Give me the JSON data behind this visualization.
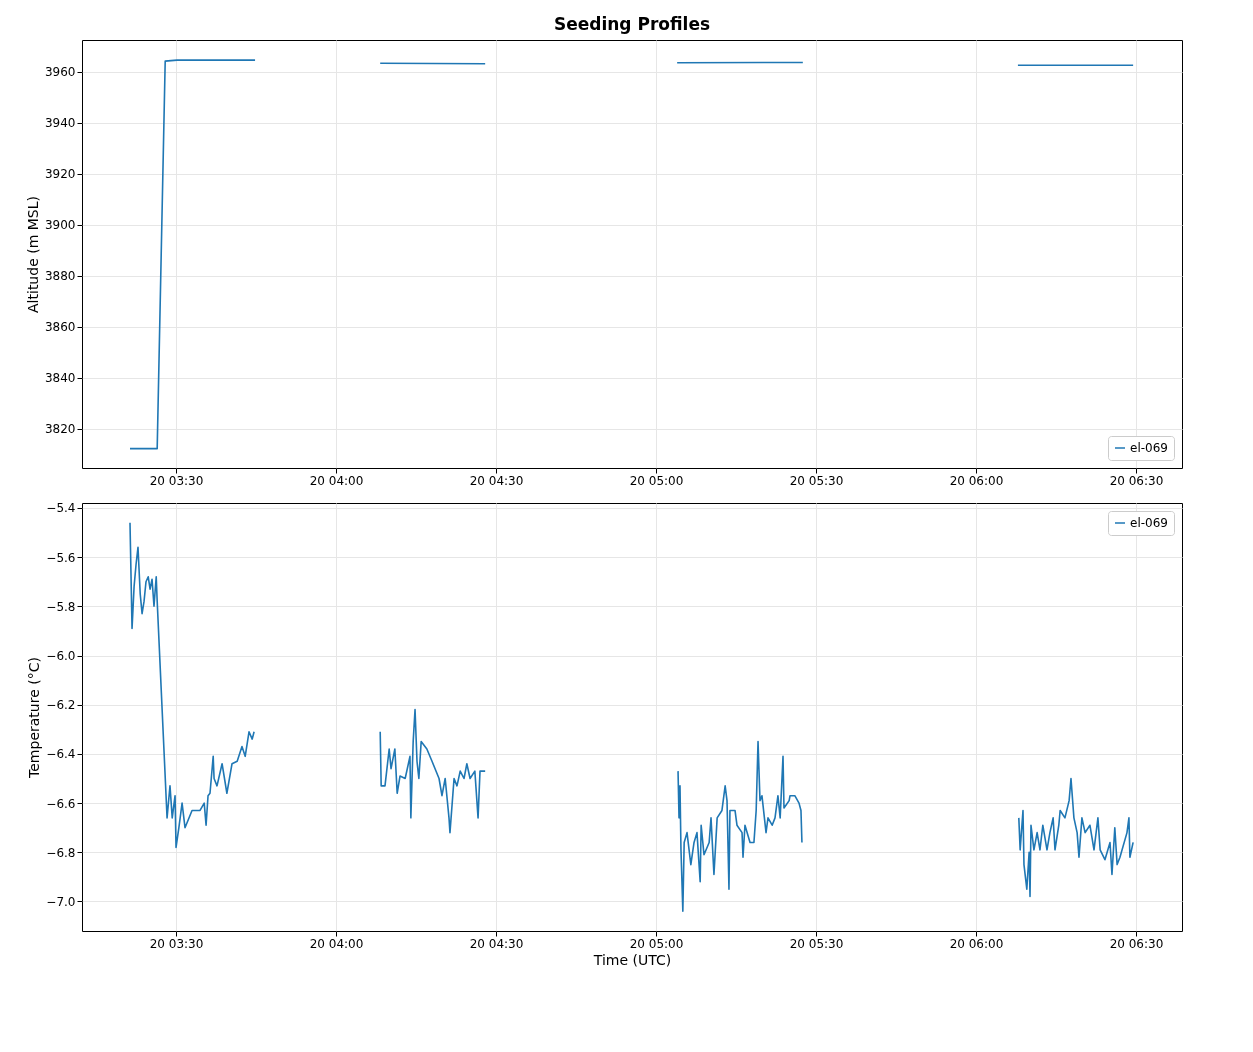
{
  "chart_data": [
    {
      "type": "line",
      "title": "Seeding Profiles",
      "ylabel": "Altitude (m MSL)",
      "xlim": [
        "--01-20T03:12:22",
        "--01-20T06:38:38"
      ],
      "ylim": [
        3804.7,
        3972.5
      ],
      "xticks": [
        {
          "value": "--01-20T03:30",
          "label": "20 03:30"
        },
        {
          "value": "--01-20T04:00",
          "label": "20 04:00"
        },
        {
          "value": "--01-20T04:30",
          "label": "20 04:30"
        },
        {
          "value": "--01-20T05:00",
          "label": "20 05:00"
        },
        {
          "value": "--01-20T05:30",
          "label": "20 05:30"
        },
        {
          "value": "--01-20T06:00",
          "label": "20 06:00"
        },
        {
          "value": "--01-20T06:30",
          "label": "20 06:30"
        }
      ],
      "yticks": [
        3820,
        3840,
        3860,
        3880,
        3900,
        3920,
        3940,
        3960
      ],
      "grid": true,
      "legend": "bottom right",
      "line_style": "solid",
      "series": [
        {
          "name": "el-069",
          "color": "#1f77b4",
          "x": [
            "--01-20T03:21:22",
            "--01-20T03:26:28",
            "--01-20T03:27:58",
            "--01-20T03:30:11",
            "--01-20T03:44:49",
            "--01-20T03:54:00",
            "--01-20T04:08:17",
            "--01-20T04:27:58",
            "--01-20T04:48:00",
            "--01-20T05:03:58",
            "--01-20T05:27:32",
            "--01-20T05:48:00",
            "--01-20T06:07:52",
            "--01-20T06:29:28"
          ],
          "values": [
            3812.3,
            3812.3,
            3964.2,
            3964.6,
            3964.6,
            null,
            3963.4,
            3963.2,
            null,
            3963.6,
            3963.7,
            null,
            3962.6,
            3962.6
          ]
        }
      ]
    },
    {
      "type": "line",
      "xlabel": "Time (UTC)",
      "ylabel": "Temperature (°C)",
      "xlim": [
        "--01-20T03:12:22",
        "--01-20T06:38:38"
      ],
      "ylim": [
        -7.12,
        -5.38
      ],
      "xticks": [
        {
          "value": "--01-20T03:30",
          "label": "20 03:30"
        },
        {
          "value": "--01-20T04:00",
          "label": "20 04:00"
        },
        {
          "value": "--01-20T04:30",
          "label": "20 04:30"
        },
        {
          "value": "--01-20T05:00",
          "label": "20 05:00"
        },
        {
          "value": "--01-20T05:30",
          "label": "20 05:30"
        },
        {
          "value": "--01-20T06:00",
          "label": "20 06:00"
        },
        {
          "value": "--01-20T06:30",
          "label": "20 06:30"
        }
      ],
      "yticks": [
        {
          "value": -7.0,
          "label": "−7.0"
        },
        {
          "value": -6.8,
          "label": "−6.8"
        },
        {
          "value": -6.6,
          "label": "−6.6"
        },
        {
          "value": -6.4,
          "label": "−6.4"
        },
        {
          "value": -6.2,
          "label": "−6.2"
        },
        {
          "value": -6.0,
          "label": "−6.0"
        },
        {
          "value": -5.8,
          "label": "−5.8"
        },
        {
          "value": -5.6,
          "label": "−5.6"
        },
        {
          "value": -5.4,
          "label": "−5.4"
        }
      ],
      "grid": true,
      "legend": "top right",
      "line_style": "solid",
      "series": [
        {
          "name": "el-069",
          "color": "#1f77b4",
          "x": [
            "--01-20T03:21:22",
            "--01-20T03:21:45",
            "--01-20T03:22:08",
            "--01-20T03:22:30",
            "--01-20T03:22:52",
            "--01-20T03:23:17",
            "--01-20T03:23:38",
            "--01-20T03:24:00",
            "--01-20T03:24:22",
            "--01-20T03:24:47",
            "--01-20T03:25:08",
            "--01-20T03:25:30",
            "--01-20T03:25:52",
            "--01-20T03:26:17",
            "--01-20T03:26:28",
            "--01-20T03:28:19",
            "--01-20T03:28:52",
            "--01-20T03:29:17",
            "--01-20T03:29:49",
            "--01-20T03:30:00",
            "--01-20T03:30:32",
            "--01-20T03:31:08",
            "--01-20T03:31:41",
            "--01-20T03:33:00",
            "--01-20T03:34:30",
            "--01-20T03:35:17",
            "--01-20T03:35:38",
            "--01-20T03:36:00",
            "--01-20T03:36:22",
            "--01-20T03:36:58",
            "--01-20T03:37:08",
            "--01-20T03:37:41",
            "--01-20T03:38:38",
            "--01-20T03:39:32",
            "--01-20T03:40:30",
            "--01-20T03:41:28",
            "--01-20T03:42:22",
            "--01-20T03:42:58",
            "--01-20T03:43:41",
            "--01-20T03:44:17",
            "--01-20T03:44:38",
            "--01-20T03:54:00",
            "--01-20T04:08:17",
            "--01-20T04:08:28",
            "--01-20T04:09:11",
            "--01-20T04:09:58",
            "--01-20T04:10:19",
            "--01-20T04:11:02",
            "--01-20T04:11:28",
            "--01-20T04:12:00",
            "--01-20T04:12:58",
            "--01-20T04:13:52",
            "--01-20T04:14:02",
            "--01-20T04:14:28",
            "--01-20T04:14:49",
            "--01-20T04:15:11",
            "--01-20T04:15:32",
            "--01-20T04:15:58",
            "--01-20T04:17:02",
            "--01-20T04:18:00",
            "--01-20T04:19:19",
            "--01-20T04:19:52",
            "--01-20T04:20:28",
            "--01-20T04:21:11",
            "--01-20T04:21:22",
            "--01-20T04:22:08",
            "--01-20T04:22:41",
            "--01-20T04:23:17",
            "--01-20T04:24:00",
            "--01-20T04:24:32",
            "--01-20T04:25:08",
            "--01-20T04:26:02",
            "--01-20T04:26:38",
            "--01-20T04:27:00",
            "--01-20T04:27:58",
            "--01-20T04:48:00",
            "--01-20T05:04:08",
            "--01-20T05:04:19",
            "--01-20T05:04:30",
            "--01-20T05:04:41",
            "--01-20T05:05:02",
            "--01-20T05:05:17",
            "--01-20T05:05:49",
            "--01-20T05:06:32",
            "--01-20T05:07:08",
            "--01-20T05:07:41",
            "--01-20T05:08:17",
            "--01-20T05:08:28",
            "--01-20T05:09:00",
            "--01-20T05:09:58",
            "--01-20T05:10:19",
            "--01-20T05:10:52",
            "--01-20T05:11:28",
            "--01-20T05:12:22",
            "--01-20T05:12:58",
            "--01-20T05:13:19",
            "--01-20T05:13:41",
            "--01-20T05:13:52",
            "--01-20T05:14:49",
            "--01-20T05:15:11",
            "--01-20T05:16:08",
            "--01-20T05:16:19",
            "--01-20T05:16:41",
            "--01-20T05:17:38",
            "--01-20T05:18:22",
            "--01-20T05:18:47",
            "--01-20T05:19:08",
            "--01-20T05:19:30",
            "--01-20T05:19:52",
            "--01-20T05:20:38",
            "--01-20T05:21:00",
            "--01-20T05:21:47",
            "--01-20T05:22:19",
            "--01-20T05:22:52",
            "--01-20T05:23:17",
            "--01-20T05:23:49",
            "--01-20T05:24:00",
            "--01-20T05:24:58",
            "--01-20T05:25:08",
            "--01-20T05:26:02",
            "--01-20T05:26:49",
            "--01-20T05:27:11",
            "--01-20T05:27:22",
            "--01-20T05:48:00",
            "--01-20T06:08:02",
            "--01-20T06:08:17",
            "--01-20T06:08:49",
            "--01-20T06:09:00",
            "--01-20T06:09:32",
            "--01-20T06:09:58",
            "--01-20T06:10:08",
            "--01-20T06:10:19",
            "--01-20T06:10:52",
            "--01-20T06:11:28",
            "--01-20T06:12:00",
            "--01-20T06:12:32",
            "--01-20T06:13:19",
            "--01-20T06:13:52",
            "--01-20T06:14:28",
            "--01-20T06:14:49",
            "--01-20T06:15:32",
            "--01-20T06:15:47",
            "--01-20T06:16:41",
            "--01-20T06:17:28",
            "--01-20T06:17:49",
            "--01-20T06:18:22",
            "--01-20T06:18:58",
            "--01-20T06:19:19",
            "--01-20T06:19:52",
            "--01-20T06:20:28",
            "--01-20T06:21:22",
            "--01-20T06:22:08",
            "--01-20T06:22:52",
            "--01-20T06:23:17",
            "--01-20T06:24:11",
            "--01-20T06:25:08",
            "--01-20T06:25:30",
            "--01-20T06:26:02",
            "--01-20T06:26:28",
            "--01-20T06:27:00",
            "--01-20T06:28:19",
            "--01-20T06:28:41",
            "--01-20T06:28:52",
            "--01-20T06:29:28"
          ],
          "values": [
            -5.46,
            -5.89,
            -5.72,
            -5.63,
            -5.56,
            -5.75,
            -5.83,
            -5.78,
            -5.7,
            -5.68,
            -5.73,
            -5.69,
            -5.8,
            -5.68,
            -5.78,
            -6.66,
            -6.53,
            -6.66,
            -6.57,
            -6.78,
            -6.7,
            -6.6,
            -6.7,
            -6.63,
            -6.63,
            -6.6,
            -6.69,
            -6.57,
            -6.56,
            -6.41,
            -6.5,
            -6.53,
            -6.44,
            -6.56,
            -6.44,
            -6.43,
            -6.37,
            -6.41,
            -6.31,
            -6.34,
            -6.31,
            null,
            -6.31,
            -6.53,
            -6.53,
            -6.38,
            -6.46,
            -6.38,
            -6.56,
            -6.49,
            -6.5,
            -6.41,
            -6.66,
            -6.35,
            -6.22,
            -6.43,
            -6.5,
            -6.35,
            -6.38,
            -6.43,
            -6.5,
            -6.57,
            -6.5,
            -6.66,
            -6.72,
            -6.5,
            -6.53,
            -6.47,
            -6.5,
            -6.44,
            -6.5,
            -6.47,
            -6.66,
            -6.47,
            -6.47,
            null,
            -6.47,
            -6.66,
            -6.53,
            -6.79,
            -7.04,
            -6.76,
            -6.72,
            -6.85,
            -6.76,
            -6.72,
            -6.92,
            -6.69,
            -6.81,
            -6.76,
            -6.66,
            -6.89,
            -6.66,
            -6.63,
            -6.53,
            -6.59,
            -6.95,
            -6.63,
            -6.63,
            -6.69,
            -6.72,
            -6.82,
            -6.69,
            -6.76,
            -6.76,
            -6.63,
            -6.35,
            -6.59,
            -6.57,
            -6.72,
            -6.66,
            -6.69,
            -6.66,
            -6.57,
            -6.66,
            -6.41,
            -6.62,
            -6.59,
            -6.57,
            -6.57,
            -6.6,
            -6.63,
            -6.76,
            null,
            -6.66,
            -6.79,
            -6.63,
            -6.85,
            -6.95,
            -6.8,
            -6.98,
            -6.69,
            -6.79,
            -6.72,
            -6.79,
            -6.69,
            -6.79,
            -6.72,
            -6.66,
            -6.79,
            -6.69,
            -6.63,
            -6.66,
            -6.59,
            -6.5,
            -6.66,
            -6.72,
            -6.82,
            -6.66,
            -6.72,
            -6.69,
            -6.79,
            -6.66,
            -6.79,
            -6.83,
            -6.76,
            -6.89,
            -6.7,
            -6.85,
            -6.82,
            -6.72,
            -6.66,
            -6.82,
            -6.76
          ]
        }
      ]
    }
  ]
}
